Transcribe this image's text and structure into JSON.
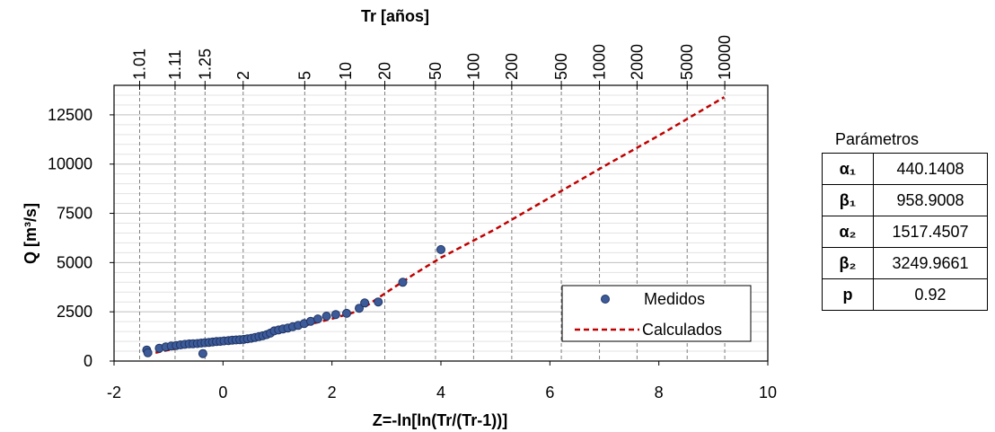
{
  "chart_data": {
    "type": "scatter",
    "xlabel": "Z=-ln[ln(Tr/(Tr-1))]",
    "ylabel": "Q [m³/s]",
    "top_axis_label": "Tr [años]",
    "xlim": [
      -2,
      10
    ],
    "ylim": [
      0,
      14000
    ],
    "x_ticks": [
      "-2",
      "0",
      "2",
      "4",
      "6",
      "8",
      "10"
    ],
    "y_ticks": [
      "0",
      "2500",
      "5000",
      "7500",
      "10000",
      "12500"
    ],
    "top_ticks": [
      {
        "label": "1.01",
        "z": -1.53
      },
      {
        "label": "1.11",
        "z": -0.88
      },
      {
        "label": "1.25",
        "z": -0.33
      },
      {
        "label": "2",
        "z": 0.37
      },
      {
        "label": "5",
        "z": 1.5
      },
      {
        "label": "10",
        "z": 2.25
      },
      {
        "label": "20",
        "z": 2.97
      },
      {
        "label": "50",
        "z": 3.9
      },
      {
        "label": "100",
        "z": 4.6
      },
      {
        "label": "200",
        "z": 5.3
      },
      {
        "label": "500",
        "z": 6.21
      },
      {
        "label": "1000",
        "z": 6.91
      },
      {
        "label": "2000",
        "z": 7.6
      },
      {
        "label": "5000",
        "z": 8.52
      },
      {
        "label": "10000",
        "z": 9.21
      }
    ],
    "grid": true,
    "legend_position": "bottom-right",
    "series": [
      {
        "name": "Medidos",
        "kind": "scatter",
        "color": "#3d5a99",
        "points": [
          [
            -1.4,
            560
          ],
          [
            -1.38,
            420
          ],
          [
            -1.17,
            650
          ],
          [
            -1.05,
            720
          ],
          [
            -0.95,
            760
          ],
          [
            -0.86,
            790
          ],
          [
            -0.78,
            820
          ],
          [
            -0.7,
            850
          ],
          [
            -0.62,
            870
          ],
          [
            -0.55,
            880
          ],
          [
            -0.47,
            890
          ],
          [
            -0.4,
            910
          ],
          [
            -0.33,
            930
          ],
          [
            -0.37,
            380
          ],
          [
            -0.26,
            950
          ],
          [
            -0.19,
            970
          ],
          [
            -0.12,
            990
          ],
          [
            -0.05,
            1000
          ],
          [
            0.02,
            1020
          ],
          [
            0.1,
            1040
          ],
          [
            0.17,
            1060
          ],
          [
            0.24,
            1070
          ],
          [
            0.31,
            1080
          ],
          [
            0.38,
            1100
          ],
          [
            0.45,
            1130
          ],
          [
            0.52,
            1160
          ],
          [
            0.59,
            1200
          ],
          [
            0.66,
            1240
          ],
          [
            0.73,
            1280
          ],
          [
            0.8,
            1340
          ],
          [
            0.87,
            1420
          ],
          [
            0.94,
            1530
          ],
          [
            1.02,
            1580
          ],
          [
            1.1,
            1630
          ],
          [
            1.19,
            1680
          ],
          [
            1.28,
            1740
          ],
          [
            1.38,
            1810
          ],
          [
            1.49,
            1900
          ],
          [
            1.61,
            2020
          ],
          [
            1.74,
            2140
          ],
          [
            1.9,
            2280
          ],
          [
            2.07,
            2360
          ],
          [
            2.27,
            2420
          ],
          [
            2.5,
            2680
          ],
          [
            2.6,
            2950
          ],
          [
            2.85,
            3000
          ],
          [
            3.3,
            4000
          ],
          [
            4.0,
            5660
          ]
        ]
      },
      {
        "name": "Calculados",
        "kind": "line",
        "color": "#c00000",
        "dashed": true,
        "points": [
          [
            -1.4,
            330
          ],
          [
            -1.0,
            560
          ],
          [
            -0.5,
            800
          ],
          [
            0.0,
            1000
          ],
          [
            0.5,
            1200
          ],
          [
            1.0,
            1500
          ],
          [
            1.5,
            1800
          ],
          [
            2.0,
            2150
          ],
          [
            2.5,
            2550
          ],
          [
            2.9,
            3300
          ],
          [
            3.5,
            4400
          ],
          [
            4.0,
            5250
          ],
          [
            5.0,
            6700
          ],
          [
            6.0,
            8300
          ],
          [
            7.0,
            9900
          ],
          [
            8.0,
            11450
          ],
          [
            9.2,
            13400
          ]
        ]
      }
    ]
  },
  "params": {
    "title": "Parámetros",
    "rows": [
      {
        "symbol": "α₁",
        "value": "440.1408"
      },
      {
        "symbol": "β₁",
        "value": "958.9008"
      },
      {
        "symbol": "α₂",
        "value": "1517.4507"
      },
      {
        "symbol": "β₂",
        "value": "3249.9661"
      },
      {
        "symbol": "p",
        "value": "0.92"
      }
    ]
  }
}
